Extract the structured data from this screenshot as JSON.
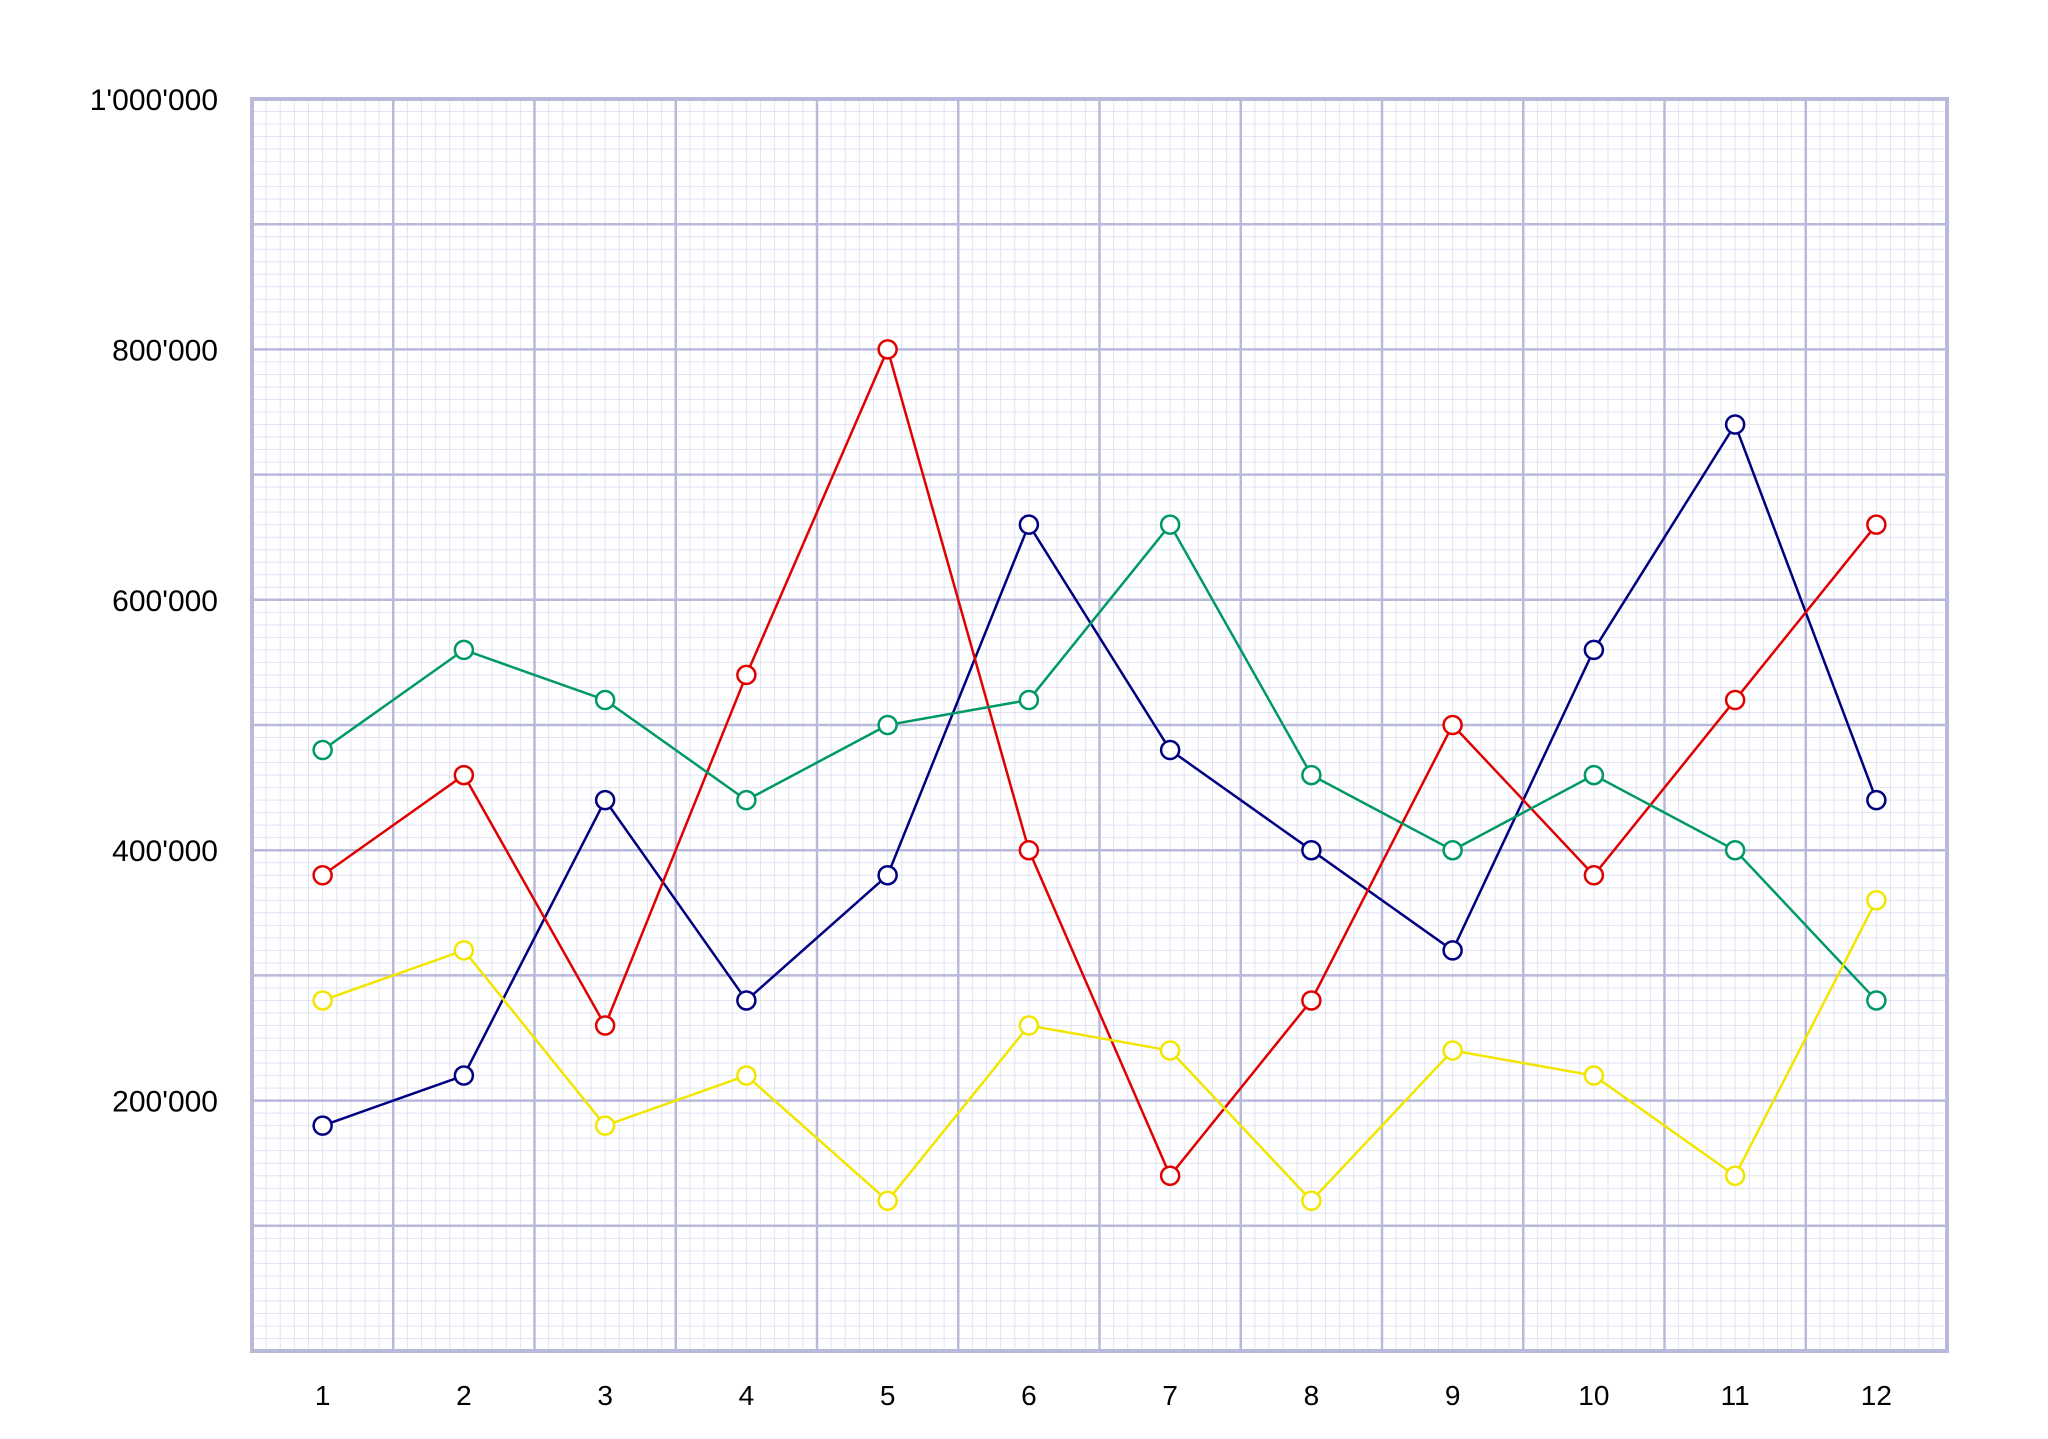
{
  "chart_data": {
    "type": "line",
    "title": "",
    "xlabel": "",
    "ylabel": "",
    "x": [
      1,
      2,
      3,
      4,
      5,
      6,
      7,
      8,
      9,
      10,
      11,
      12
    ],
    "x_tick_labels": [
      "1",
      "2",
      "3",
      "4",
      "5",
      "6",
      "7",
      "8",
      "9",
      "10",
      "11",
      "12"
    ],
    "ylim": [
      0,
      1000000
    ],
    "y_ticks": [
      200000,
      400000,
      600000,
      800000,
      1000000
    ],
    "y_tick_labels": [
      "200'000",
      "400'000",
      "600'000",
      "800'000",
      "1'000'000"
    ],
    "grid": true,
    "legend": "none",
    "series": [
      {
        "color": "#000080",
        "values": [
          180000,
          220000,
          440000,
          280000,
          380000,
          660000,
          480000,
          400000,
          320000,
          560000,
          740000,
          440000
        ]
      },
      {
        "color": "#e00000",
        "values": [
          380000,
          460000,
          260000,
          540000,
          800000,
          400000,
          140000,
          280000,
          500000,
          380000,
          520000,
          660000
        ]
      },
      {
        "color": "#009966",
        "values": [
          480000,
          560000,
          520000,
          440000,
          500000,
          520000,
          660000,
          460000,
          400000,
          460000,
          400000,
          280000
        ]
      },
      {
        "color": "#f2e600",
        "values": [
          280000,
          320000,
          180000,
          220000,
          120000,
          260000,
          240000,
          120000,
          240000,
          220000,
          140000,
          360000
        ]
      }
    ],
    "colors": {
      "grid_major": "#b9b9dc",
      "grid_minor": "#e3e3f3",
      "frame": "#b9b9dc"
    }
  }
}
